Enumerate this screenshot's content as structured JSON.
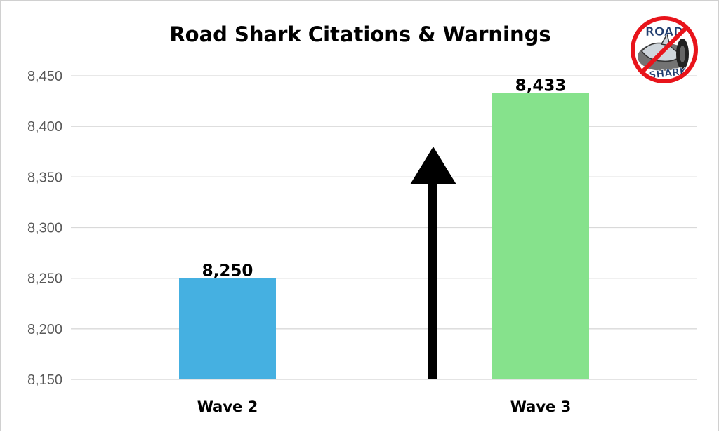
{
  "chart_data": {
    "type": "bar",
    "title": "Road Shark Citations & Warnings",
    "categories": [
      "Wave 2",
      "Wave 3"
    ],
    "values": [
      8250,
      8433
    ],
    "data_labels": [
      "8,250",
      "8,433"
    ],
    "ylim": [
      8150,
      8450
    ],
    "yticks": [
      8150,
      8200,
      8250,
      8300,
      8350,
      8400,
      8450
    ],
    "ytick_labels": [
      "8,150",
      "8,200",
      "8,250",
      "8,300",
      "8,350",
      "8,400",
      "8,450"
    ],
    "grid": true,
    "legend": "none",
    "bar_colors": [
      "#45B0E1",
      "#86E28C"
    ],
    "annotation": "up-arrow between bars"
  },
  "logo": {
    "text_top": "ROAD",
    "text_bottom": "SHARK",
    "ring_color": "#E8141B",
    "text_color": "#1F3C6E"
  },
  "colors": {
    "grid": "#D9D9D9",
    "axis_text": "#595959",
    "arrow": "#000000"
  }
}
